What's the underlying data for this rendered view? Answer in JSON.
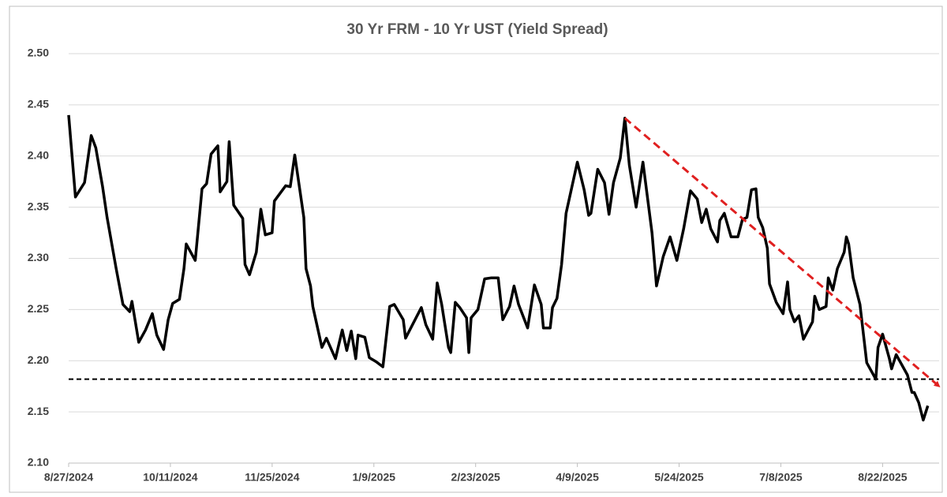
{
  "chart_data": {
    "type": "line",
    "title": "30 Yr FRM - 10 Yr UST (Yield Spread)",
    "x": [
      "2024-08-27",
      "2024-08-30",
      "2024-09-03",
      "2024-09-06",
      "2024-09-08",
      "2024-09-11",
      "2024-09-13",
      "2024-09-17",
      "2024-09-20",
      "2024-09-23",
      "2024-09-24",
      "2024-09-27",
      "2024-09-30",
      "2024-10-03",
      "2024-10-05",
      "2024-10-08",
      "2024-10-10",
      "2024-10-12",
      "2024-10-15",
      "2024-10-17",
      "2024-10-18",
      "2024-10-22",
      "2024-10-25",
      "2024-10-27",
      "2024-10-29",
      "2024-11-01",
      "2024-11-02",
      "2024-11-05",
      "2024-11-06",
      "2024-11-08",
      "2024-11-12",
      "2024-11-13",
      "2024-11-15",
      "2024-11-18",
      "2024-11-20",
      "2024-11-22",
      "2024-11-25",
      "2024-11-26",
      "2024-12-01",
      "2024-12-03",
      "2024-12-05",
      "2024-12-09",
      "2024-12-10",
      "2024-12-12",
      "2024-12-13",
      "2024-12-17",
      "2024-12-19",
      "2024-12-23",
      "2024-12-26",
      "2024-12-28",
      "2024-12-30",
      "2025-01-01",
      "2025-01-02",
      "2025-01-05",
      "2025-01-07",
      "2025-01-10",
      "2025-01-13",
      "2025-01-16",
      "2025-01-18",
      "2025-01-22",
      "2025-01-23",
      "2025-01-30",
      "2025-02-01",
      "2025-02-04",
      "2025-02-06",
      "2025-02-08",
      "2025-02-11",
      "2025-02-12",
      "2025-02-14",
      "2025-02-16",
      "2025-02-19",
      "2025-02-20",
      "2025-02-21",
      "2025-02-24",
      "2025-02-27",
      "2025-03-02",
      "2025-03-05",
      "2025-03-07",
      "2025-03-10",
      "2025-03-12",
      "2025-03-14",
      "2025-03-18",
      "2025-03-21",
      "2025-03-24",
      "2025-03-25",
      "2025-03-28",
      "2025-03-29",
      "2025-03-31",
      "2025-04-02",
      "2025-04-04",
      "2025-04-09",
      "2025-04-12",
      "2025-04-14",
      "2025-04-15",
      "2025-04-18",
      "2025-04-21",
      "2025-04-23",
      "2025-04-25",
      "2025-04-28",
      "2025-04-30",
      "2025-05-02",
      "2025-05-05",
      "2025-05-08",
      "2025-05-12",
      "2025-05-14",
      "2025-05-17",
      "2025-05-20",
      "2025-05-23",
      "2025-05-26",
      "2025-05-29",
      "2025-06-01",
      "2025-06-03",
      "2025-06-05",
      "2025-06-07",
      "2025-06-10",
      "2025-06-11",
      "2025-06-13",
      "2025-06-16",
      "2025-06-19",
      "2025-06-21",
      "2025-06-23",
      "2025-06-25",
      "2025-06-27",
      "2025-06-28",
      "2025-06-30",
      "2025-07-02",
      "2025-07-03",
      "2025-07-06",
      "2025-07-09",
      "2025-07-11",
      "2025-07-12",
      "2025-07-14",
      "2025-07-16",
      "2025-07-18",
      "2025-07-22",
      "2025-07-23",
      "2025-07-25",
      "2025-07-28",
      "2025-07-29",
      "2025-07-31",
      "2025-08-02",
      "2025-08-05",
      "2025-08-06",
      "2025-08-07",
      "2025-08-09",
      "2025-08-12",
      "2025-08-15",
      "2025-08-19",
      "2025-08-20",
      "2025-08-22",
      "2025-08-25",
      "2025-08-26",
      "2025-08-28",
      "2025-08-30",
      "2025-09-02",
      "2025-09-04",
      "2025-09-05",
      "2025-09-07",
      "2025-09-09",
      "2025-09-11"
    ],
    "series": [
      {
        "name": "Yield Spread",
        "color": "#000000",
        "values": [
          2.44,
          2.36,
          2.374,
          2.42,
          2.408,
          2.37,
          2.34,
          2.29,
          2.255,
          2.248,
          2.258,
          2.218,
          2.23,
          2.246,
          2.225,
          2.211,
          2.24,
          2.256,
          2.26,
          2.29,
          2.314,
          2.298,
          2.368,
          2.373,
          2.402,
          2.41,
          2.365,
          2.375,
          2.414,
          2.352,
          2.339,
          2.294,
          2.284,
          2.306,
          2.348,
          2.323,
          2.325,
          2.356,
          2.371,
          2.37,
          2.401,
          2.34,
          2.29,
          2.273,
          2.253,
          2.213,
          2.222,
          2.202,
          2.23,
          2.21,
          2.229,
          2.202,
          2.225,
          2.223,
          2.203,
          2.199,
          2.194,
          2.253,
          2.255,
          2.24,
          2.222,
          2.252,
          2.235,
          2.221,
          2.276,
          2.255,
          2.213,
          2.208,
          2.257,
          2.252,
          2.242,
          2.208,
          2.242,
          2.25,
          2.28,
          2.281,
          2.281,
          2.24,
          2.253,
          2.273,
          2.255,
          2.232,
          2.274,
          2.255,
          2.232,
          2.232,
          2.252,
          2.261,
          2.294,
          2.344,
          2.394,
          2.367,
          2.342,
          2.344,
          2.387,
          2.374,
          2.343,
          2.374,
          2.398,
          2.437,
          2.391,
          2.35,
          2.394,
          2.325,
          2.273,
          2.302,
          2.321,
          2.298,
          2.329,
          2.366,
          2.358,
          2.335,
          2.348,
          2.329,
          2.316,
          2.337,
          2.344,
          2.321,
          2.321,
          2.338,
          2.34,
          2.367,
          2.368,
          2.34,
          2.33,
          2.31,
          2.275,
          2.257,
          2.246,
          2.277,
          2.25,
          2.238,
          2.244,
          2.221,
          2.238,
          2.263,
          2.25,
          2.253,
          2.281,
          2.269,
          2.29,
          2.306,
          2.321,
          2.314,
          2.281,
          2.255,
          2.198,
          2.182,
          2.213,
          2.226,
          2.202,
          2.192,
          2.206,
          2.198,
          2.186,
          2.169,
          2.169,
          2.159,
          2.142,
          2.156
        ]
      }
    ],
    "hline": {
      "value": 2.182,
      "color": "#000000"
    },
    "trendline": {
      "x": [
        "2025-04-30",
        "2025-09-16"
      ],
      "values": [
        2.437,
        2.175
      ],
      "color": "#e02020"
    },
    "xlim": [
      "2024-08-27",
      "2025-09-16"
    ],
    "xticks": [
      {
        "value": "2024-08-27",
        "label": "8/27/2024"
      },
      {
        "value": "2024-10-11",
        "label": "10/11/2024"
      },
      {
        "value": "2024-11-25",
        "label": "11/25/2024"
      },
      {
        "value": "2025-01-09",
        "label": "1/9/2025"
      },
      {
        "value": "2025-02-23",
        "label": "2/23/2025"
      },
      {
        "value": "2025-04-09",
        "label": "4/9/2025"
      },
      {
        "value": "2025-05-24",
        "label": "5/24/2025"
      },
      {
        "value": "2025-07-08",
        "label": "7/8/2025"
      },
      {
        "value": "2025-08-22",
        "label": "8/22/2025"
      }
    ],
    "ylim": [
      2.1,
      2.5
    ],
    "yticks": [
      {
        "value": 2.1,
        "label": "2.10"
      },
      {
        "value": 2.15,
        "label": "2.15"
      },
      {
        "value": 2.2,
        "label": "2.20"
      },
      {
        "value": 2.25,
        "label": "2.25"
      },
      {
        "value": 2.3,
        "label": "2.30"
      },
      {
        "value": 2.35,
        "label": "2.35"
      },
      {
        "value": 2.4,
        "label": "2.40"
      },
      {
        "value": 2.45,
        "label": "2.45"
      },
      {
        "value": 2.5,
        "label": "2.50"
      }
    ],
    "grid": true
  }
}
